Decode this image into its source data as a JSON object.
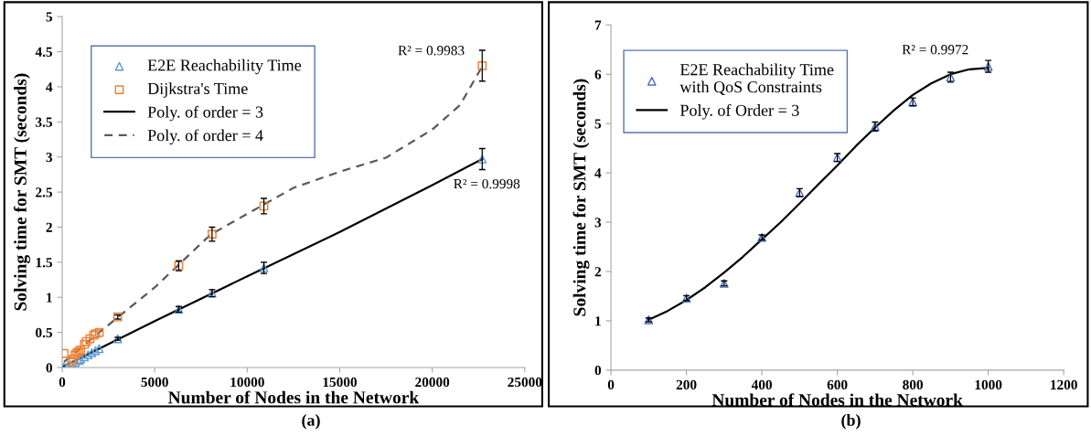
{
  "chart_data": [
    {
      "type": "scatter",
      "xlabel": "Number of Nodes in the Network",
      "ylabel": "Solving time for SMT (seconds)",
      "xlim": [
        0,
        25000
      ],
      "xticks": [
        0,
        5000,
        10000,
        15000,
        20000,
        25000
      ],
      "ylim": [
        0,
        5
      ],
      "yticks": [
        0,
        0.5,
        1,
        1.5,
        2,
        2.5,
        3,
        3.5,
        4,
        4.5,
        5
      ],
      "grid": false,
      "legend": "top left",
      "series": [
        {
          "name": "E2E Reachability Time",
          "marker": "triangle",
          "color": "#5b9bd5",
          "x": [
            100,
            300,
            500,
            700,
            900,
            1000,
            1200,
            1400,
            1600,
            1800,
            2000,
            3000,
            6300,
            8100,
            10900,
            22700
          ],
          "values": [
            0.01,
            0.02,
            0.04,
            0.07,
            0.1,
            0.12,
            0.15,
            0.18,
            0.21,
            0.24,
            0.27,
            0.41,
            0.83,
            1.06,
            1.42,
            2.97
          ],
          "errors": [
            null,
            null,
            null,
            null,
            null,
            null,
            null,
            null,
            null,
            null,
            null,
            0.02,
            0.04,
            0.05,
            0.08,
            0.15
          ]
        },
        {
          "name": "Dijkstra's Time",
          "marker": "square",
          "color": "#ed7d31",
          "x": [
            100,
            500,
            600,
            700,
            800,
            900,
            1000,
            1200,
            1300,
            1500,
            1700,
            1800,
            2000,
            3000,
            6300,
            8100,
            10900,
            22700
          ],
          "values": [
            0.2,
            0.08,
            0.12,
            0.18,
            0.21,
            0.23,
            0.25,
            0.33,
            0.37,
            0.41,
            0.46,
            0.48,
            0.5,
            0.72,
            1.45,
            1.9,
            2.3,
            4.3
          ],
          "errors": [
            null,
            null,
            null,
            null,
            null,
            null,
            null,
            null,
            null,
            null,
            null,
            null,
            null,
            0.03,
            0.07,
            0.1,
            0.11,
            0.22
          ]
        },
        {
          "name": "Poly. of order = 3",
          "type": "line",
          "marker": "none",
          "line_style": "solid",
          "color": "#000000",
          "x": [
            100,
            5000,
            10000,
            15000,
            20000,
            22700
          ],
          "values": [
            0.02,
            0.66,
            1.3,
            1.93,
            2.6,
            2.97
          ]
        },
        {
          "name": "Poly. of order = 4",
          "type": "line",
          "marker": "none",
          "line_style": "dashed",
          "color": "#595959",
          "x": [
            100,
            2000,
            5000,
            8000,
            10000,
            12500,
            15000,
            17500,
            20000,
            21500,
            22700
          ],
          "values": [
            0.08,
            0.5,
            1.14,
            1.89,
            2.19,
            2.56,
            2.79,
            2.99,
            3.39,
            3.74,
            4.29
          ]
        }
      ],
      "annotations": [
        "R² = 0.9983",
        "R² = 0.9998",
        "(a)"
      ]
    },
    {
      "type": "scatter",
      "xlabel": "Number of Nodes in the Network",
      "ylabel": "Solving time for SMT (seconds)",
      "xlim": [
        0,
        1200
      ],
      "xticks": [
        0,
        200,
        400,
        600,
        800,
        1000,
        1200
      ],
      "ylim": [
        0,
        7
      ],
      "yticks": [
        0,
        1,
        2,
        3,
        4,
        5,
        6,
        7
      ],
      "grid": false,
      "legend": "top left",
      "series": [
        {
          "name": "E2E Reachability Time\nwith QoS Constraints",
          "marker": "triangle",
          "color": "#4472c4",
          "x": [
            100,
            200,
            300,
            400,
            500,
            600,
            700,
            800,
            900,
            1000
          ],
          "values": [
            1.02,
            1.46,
            1.76,
            2.69,
            3.6,
            4.31,
            4.94,
            5.44,
            5.94,
            6.16
          ],
          "errors": [
            0.04,
            0.05,
            0.05,
            0.05,
            0.08,
            0.08,
            0.09,
            0.08,
            0.1,
            0.12
          ]
        },
        {
          "name": "Poly. of Order = 3",
          "type": "line",
          "marker": "none",
          "line_style": "solid",
          "color": "#000000",
          "x": [
            100,
            150,
            200,
            250,
            300,
            350,
            400,
            450,
            500,
            550,
            600,
            650,
            700,
            750,
            800,
            850,
            900,
            950,
            1000
          ],
          "values": [
            1.02,
            1.2,
            1.42,
            1.68,
            1.98,
            2.3,
            2.65,
            3.0,
            3.38,
            3.77,
            4.15,
            4.55,
            4.92,
            5.27,
            5.58,
            5.82,
            6.0,
            6.1,
            6.13
          ]
        }
      ],
      "annotations": [
        "R² = 0.9972",
        "(b)"
      ]
    }
  ]
}
